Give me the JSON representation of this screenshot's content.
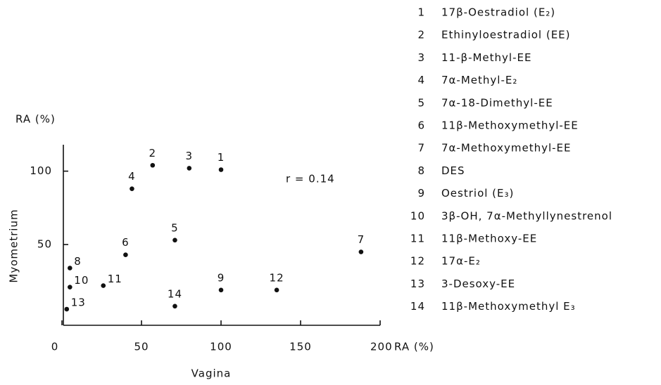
{
  "chart_data": {
    "type": "scatter",
    "y_unit": "RA (%)",
    "y_label": "Myometrium",
    "x_label": "Vagina",
    "x_unit": "RA (%)",
    "annotation": "r = 0.14",
    "xlim": [
      0,
      200
    ],
    "xticks": [
      0,
      50,
      100,
      150,
      200
    ],
    "ylim": [
      -5,
      118
    ],
    "yticks": [
      50,
      100
    ],
    "color": "#111111",
    "series": [
      {
        "x": [
          100,
          57,
          80,
          44,
          71,
          40,
          188,
          5,
          100,
          5,
          26,
          135,
          3,
          71
        ],
        "values": [
          101,
          104,
          102,
          88,
          53,
          43,
          45,
          34,
          19,
          21,
          22,
          19,
          6,
          8
        ],
        "labels": [
          "1",
          "2",
          "3",
          "4",
          "5",
          "6",
          "7",
          "8",
          "9",
          "10",
          "11",
          "12",
          "13",
          "14"
        ]
      }
    ],
    "compounds": [
      {
        "number": "1",
        "name": "17β-Oestradiol (E₂)"
      },
      {
        "number": "2",
        "name": "Ethinyloestradiol (EE)"
      },
      {
        "number": "3",
        "name": "11-β-Methyl-EE"
      },
      {
        "number": "4",
        "name": "7α-Methyl-E₂"
      },
      {
        "number": "5",
        "name": "7α-18-Dimethyl-EE"
      },
      {
        "number": "6",
        "name": "11β-Methoxymethyl-EE"
      },
      {
        "number": "7",
        "name": "7α-Methoxymethyl-EE"
      },
      {
        "number": "8",
        "name": "DES"
      },
      {
        "number": "9",
        "name": "Oestriol (E₃)"
      },
      {
        "number": "10",
        "name": "3β-OH, 7α-Methyllynestrenol"
      },
      {
        "number": "11",
        "name": "11β-Methoxy-EE"
      },
      {
        "number": "12",
        "name": "17α-E₂"
      },
      {
        "number": "13",
        "name": "3-Desoxy-EE"
      },
      {
        "number": "14",
        "name": "11β-Methoxymethyl E₃"
      }
    ]
  }
}
